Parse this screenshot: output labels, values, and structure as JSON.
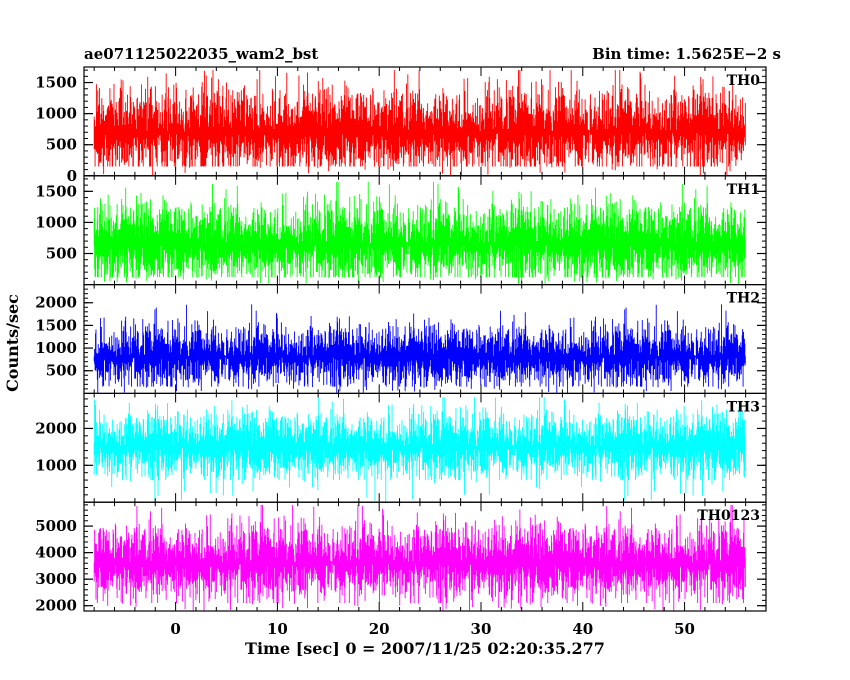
{
  "chart_data": {
    "type": "line",
    "title_left": "ae071125022035_wam2_bst",
    "title_right": "Bin time: 1.5625E−2 s",
    "xlabel": "Time [sec] 0 = 2007/11/25 02:20:35.277",
    "ylabel": "Counts/sec",
    "xlim": [
      -9,
      58
    ],
    "x_data_range": [
      -8,
      56
    ],
    "x_ticks": [
      0,
      10,
      20,
      30,
      40,
      50
    ],
    "x_tick_labels": [
      "0",
      "10",
      "20",
      "30",
      "40",
      "50"
    ],
    "x_minor_step": 2,
    "grid": false,
    "series": [
      {
        "name": "TH0",
        "color": "#ff0000",
        "ylim": [
          0,
          1750
        ],
        "y_ticks": [
          0,
          500,
          1000,
          1500
        ],
        "y_tick_labels": [
          "0",
          "500",
          "1000",
          "1500"
        ],
        "y_minor_step": 100,
        "envelope": {
          "mean": 700,
          "low": 150,
          "high": 1700,
          "noise_sd": 380
        }
      },
      {
        "name": "TH1",
        "color": "#00ff00",
        "ylim": [
          0,
          1750
        ],
        "y_ticks": [
          500,
          1000,
          1500
        ],
        "y_tick_labels": [
          "500",
          "1000",
          "1500"
        ],
        "y_minor_step": 100,
        "envelope": {
          "mean": 650,
          "low": 120,
          "high": 1650,
          "noise_sd": 360
        }
      },
      {
        "name": "TH2",
        "color": "#0000ff",
        "ylim": [
          0,
          2400
        ],
        "y_ticks": [
          500,
          1000,
          1500,
          2000
        ],
        "y_tick_labels": [
          "500",
          "1000",
          "1500",
          "2000"
        ],
        "y_minor_step": 100,
        "envelope": {
          "mean": 800,
          "low": 150,
          "high": 2300,
          "noise_sd": 380
        }
      },
      {
        "name": "TH3",
        "color": "#00ffff",
        "ylim": [
          0,
          2950
        ],
        "y_ticks": [
          1000,
          2000
        ],
        "y_tick_labels": [
          "1000",
          "2000"
        ],
        "y_minor_step": 200,
        "envelope": {
          "mean": 1500,
          "low": 600,
          "high": 2850,
          "noise_sd": 500
        }
      },
      {
        "name": "TH0123",
        "color": "#ff00ff",
        "ylim": [
          1800,
          5900
        ],
        "y_ticks": [
          2000,
          3000,
          4000,
          5000
        ],
        "y_tick_labels": [
          "2000",
          "3000",
          "4000",
          "5000"
        ],
        "y_minor_step": 200,
        "envelope": {
          "mean": 3600,
          "low": 2100,
          "high": 5800,
          "noise_sd": 800
        }
      }
    ]
  }
}
